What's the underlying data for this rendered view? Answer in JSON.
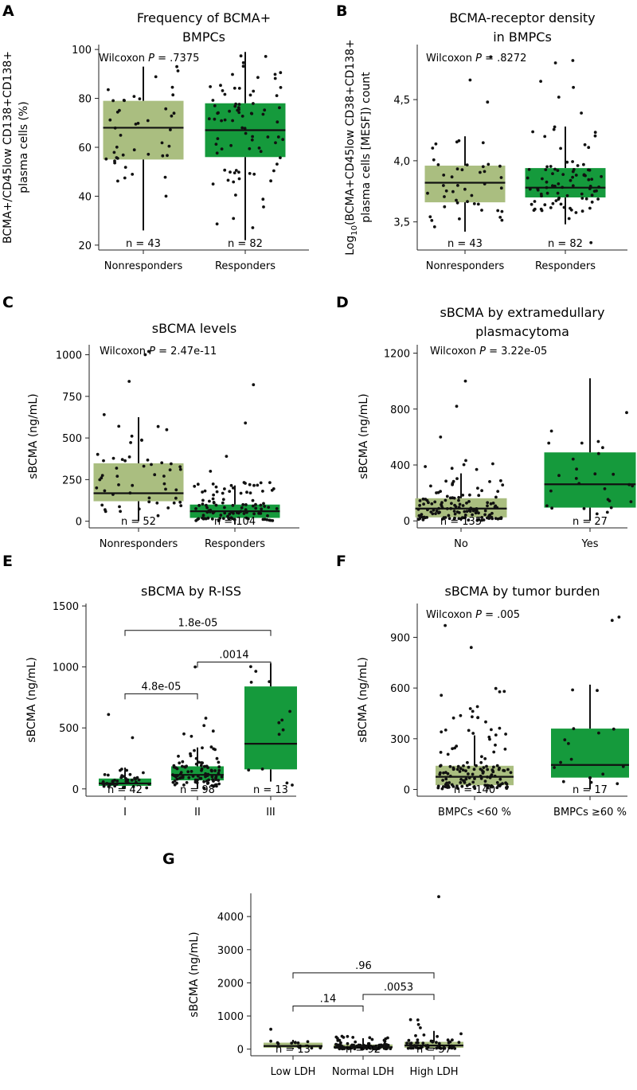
{
  "colors": {
    "light": "#aabe80",
    "dark": "#159a3c",
    "axis": "#222222",
    "point": "#111111"
  },
  "chart_data": [
    {
      "panel": "A",
      "type": "box",
      "title": [
        "Frequency of BCMA+",
        "BMPCs"
      ],
      "ylabel": [
        "BCMA+/CD45low CD138+CD138+",
        "plasma cells (%)"
      ],
      "ylim": [
        18,
        102
      ],
      "yticks": [
        20,
        40,
        60,
        80,
        100
      ],
      "yticklabels": [
        "20",
        "40",
        "60",
        "80",
        "100"
      ],
      "stat_label": "Wilcoxon ",
      "stat_p": "P",
      "stat_value": " = .7375",
      "groups": [
        {
          "label": "Nonresponders",
          "n": "n = 43",
          "fill": "light",
          "q1": 55,
          "median": 68,
          "q3": 79,
          "wlo": 26,
          "whi": 93,
          "points": 43,
          "pmin": 26,
          "pmax": 93,
          "outliers": []
        },
        {
          "label": "Responders",
          "n": "n = 82",
          "fill": "dark",
          "q1": 56,
          "median": 67,
          "q3": 78,
          "wlo": 22,
          "whi": 99,
          "points": 82,
          "pmin": 23,
          "pmax": 99,
          "outliers": []
        }
      ]
    },
    {
      "panel": "B",
      "type": "box",
      "title": [
        "BCMA-receptor density",
        "in BMPCs"
      ],
      "ylabel": [
        "Log10(BCMA+CD45low CD38+CD138+",
        "plasma cells [MESF]) count"
      ],
      "ylim": [
        3.27,
        4.95
      ],
      "yticks": [
        3.5,
        4.0,
        4.5
      ],
      "yticklabels": [
        "3,5",
        "4,0",
        "4,5"
      ],
      "stat_label": "Wilcoxon ",
      "stat_p": "P",
      "stat_value": " = .8272",
      "groups": [
        {
          "label": "Nonresponders",
          "n": "n = 43",
          "fill": "light",
          "q1": 3.66,
          "median": 3.82,
          "q3": 3.96,
          "wlo": 3.42,
          "whi": 4.2,
          "points": 43,
          "pmin": 3.42,
          "pmax": 4.2,
          "outliers": [
            4.48,
            4.66,
            4.85
          ]
        },
        {
          "label": "Responders",
          "n": "n = 82",
          "fill": "dark",
          "q1": 3.7,
          "median": 3.78,
          "q3": 3.94,
          "wlo": 3.48,
          "whi": 4.28,
          "points": 82,
          "pmin": 3.48,
          "pmax": 4.28,
          "outliers": [
            3.33,
            4.39,
            4.52,
            4.6,
            4.65,
            4.8,
            4.82
          ]
        }
      ]
    },
    {
      "panel": "C",
      "type": "box",
      "title": [
        "sBCMA levels"
      ],
      "ylabel": [
        "sBCMA (ng/mL)"
      ],
      "ylim": [
        -40,
        1060
      ],
      "yticks": [
        0,
        250,
        500,
        750,
        1000
      ],
      "yticklabels": [
        "0",
        "250",
        "500",
        "750",
        "1000"
      ],
      "stat_label": "Wilcoxon ",
      "stat_p": "P",
      "stat_value": " = 2.47e-11",
      "groups": [
        {
          "label": "Nonresponders",
          "n": "n = 52",
          "fill": "light",
          "q1": 120,
          "median": 168,
          "q3": 348,
          "wlo": 0,
          "whi": 625,
          "points": 52,
          "pmin": 5,
          "pmax": 600,
          "outliers": [
            640,
            840,
            1000,
            1020
          ]
        },
        {
          "label": "Responders",
          "n": "n = 104",
          "fill": "dark",
          "q1": 20,
          "median": 60,
          "q3": 100,
          "wlo": -20,
          "whi": 215,
          "points": 104,
          "pmin": 0,
          "pmax": 260,
          "outliers": [
            300,
            390,
            590,
            820
          ]
        }
      ]
    },
    {
      "panel": "D",
      "type": "box",
      "title": [
        "sBCMA by extramedullary",
        "plasmacytoma"
      ],
      "ylabel": [
        "sBCMA (ng/mL)"
      ],
      "ylim": [
        -50,
        1260
      ],
      "yticks": [
        0,
        400,
        800,
        1200
      ],
      "yticklabels": [
        "0",
        "400",
        "800",
        "1200"
      ],
      "stat_label": "Wilcoxon ",
      "stat_p": "P",
      "stat_value": " = 3.22e-05",
      "groups": [
        {
          "label": "No",
          "n": "n = 135",
          "fill": "light",
          "q1": 25,
          "median": 88,
          "q3": 162,
          "wlo": 0,
          "whi": 340,
          "points": 135,
          "pmin": 0,
          "pmax": 460,
          "outliers": [
            600,
            820,
            1000
          ]
        },
        {
          "label": "Yes",
          "n": "n = 27",
          "fill": "dark",
          "q1": 95,
          "median": 262,
          "q3": 490,
          "wlo": 0,
          "whi": 1020,
          "points": 27,
          "pmin": 10,
          "pmax": 1020,
          "outliers": []
        }
      ]
    },
    {
      "panel": "E",
      "type": "box",
      "title": [
        "sBCMA by R-ISS"
      ],
      "ylabel": [
        "sBCMA (ng/mL)"
      ],
      "ylim": [
        -60,
        1520
      ],
      "yticks": [
        0,
        500,
        1000,
        1500
      ],
      "yticklabels": [
        "0",
        "500",
        "1000",
        "1500"
      ],
      "stat_label": "",
      "stat_p": "",
      "stat_value": "",
      "groups": [
        {
          "label": "I",
          "n": "n = 42",
          "fill": "dark",
          "q1": 25,
          "median": 45,
          "q3": 85,
          "wlo": 0,
          "whi": 175,
          "points": 42,
          "pmin": 0,
          "pmax": 175,
          "outliers": [
            420,
            610
          ]
        },
        {
          "label": "II",
          "n": "n = 98",
          "fill": "dark",
          "q1": 70,
          "median": 115,
          "q3": 185,
          "wlo": 0,
          "whi": 340,
          "points": 98,
          "pmin": 0,
          "pmax": 520,
          "outliers": [
            580,
            1000
          ]
        },
        {
          "label": "III",
          "n": "n = 13",
          "fill": "dark",
          "q1": 160,
          "median": 370,
          "q3": 840,
          "wlo": 60,
          "whi": 1030,
          "points": 13,
          "pmin": 0,
          "pmax": 1030,
          "outliers": []
        }
      ],
      "brackets": [
        {
          "from": 0,
          "to": 1,
          "y": 780,
          "label": "4.8e-05"
        },
        {
          "from": 1,
          "to": 2,
          "y": 1040,
          "label": ".0014"
        },
        {
          "from": 0,
          "to": 2,
          "y": 1300,
          "label": "1.8e-05"
        }
      ]
    },
    {
      "panel": "F",
      "type": "box",
      "title": [
        "sBCMA by tumor burden"
      ],
      "ylabel": [
        "sBCMA (ng/mL)"
      ],
      "ylim": [
        -40,
        1100
      ],
      "yticks": [
        0,
        300,
        600,
        900
      ],
      "yticklabels": [
        "0",
        "300",
        "600",
        "900"
      ],
      "stat_label": "Wilcoxon ",
      "stat_p": "P",
      "stat_value": " = .005",
      "groups": [
        {
          "label": "BMPCs <60 %",
          "n": "n = 140",
          "fill": "light",
          "q1": 25,
          "median": 75,
          "q3": 140,
          "wlo": 0,
          "whi": 320,
          "points": 140,
          "pmin": 0,
          "pmax": 600,
          "outliers": [
            840,
            970
          ]
        },
        {
          "label": "BMPCs ≥60 %",
          "n": "n = 17",
          "fill": "dark",
          "q1": 70,
          "median": 145,
          "q3": 360,
          "wlo": 0,
          "whi": 620,
          "points": 17,
          "pmin": 5,
          "pmax": 620,
          "outliers": [
            1000,
            1020
          ]
        }
      ]
    },
    {
      "panel": "G",
      "type": "box",
      "title": [],
      "ylabel": [
        "sBCMA (ng/mL)"
      ],
      "ylim": [
        -200,
        4700
      ],
      "yticks": [
        0,
        1000,
        2000,
        3000,
        4000
      ],
      "yticklabels": [
        "0",
        "1000",
        "2000",
        "3000",
        "4000"
      ],
      "stat_label": "",
      "stat_p": "",
      "stat_value": "",
      "groups": [
        {
          "label": "Low LDH",
          "n": "n = 13",
          "fill": "light",
          "q1": 40,
          "median": 95,
          "q3": 195,
          "wlo": 0,
          "whi": 280,
          "points": 13,
          "pmin": 0,
          "pmax": 300,
          "outliers": [
            600
          ]
        },
        {
          "label": "Normal LDH",
          "n": "n = 92",
          "fill": "light",
          "q1": 20,
          "median": 60,
          "q3": 140,
          "wlo": 0,
          "whi": 330,
          "points": 92,
          "pmin": 0,
          "pmax": 420,
          "outliers": []
        },
        {
          "label": "High LDH",
          "n": "n = 57",
          "fill": "light",
          "q1": 40,
          "median": 110,
          "q3": 220,
          "wlo": 0,
          "whi": 550,
          "points": 57,
          "pmin": 0,
          "pmax": 1000,
          "outliers": [
            4600
          ]
        }
      ],
      "brackets": [
        {
          "from": 0,
          "to": 1,
          "y": 1300,
          "label": ".14"
        },
        {
          "from": 1,
          "to": 2,
          "y": 1650,
          "label": ".0053"
        },
        {
          "from": 0,
          "to": 2,
          "y": 2300,
          "label": ".96"
        }
      ]
    }
  ]
}
